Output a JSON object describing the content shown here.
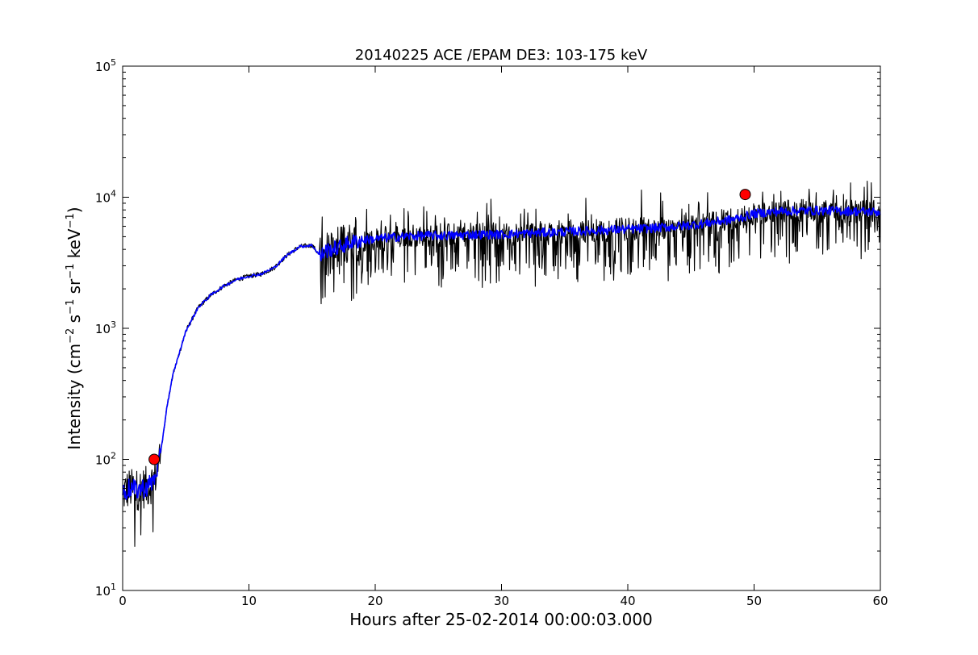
{
  "chart_data": {
    "type": "line",
    "title": "20140225 ACE /EPAM DE3: 103-175 keV",
    "xlabel": "Hours after 25-02-2014 00:00:03.000",
    "ylabel": {
      "parts": [
        "Intensity (cm",
        "−2",
        " s",
        "−1",
        " sr",
        "−1",
        " keV",
        "−1",
        ")"
      ],
      "superscript": [
        false,
        true,
        false,
        true,
        false,
        true,
        false,
        true,
        false
      ]
    },
    "xlim": [
      0,
      60
    ],
    "ylim": [
      10,
      100000
    ],
    "yscale": "log",
    "grid": false,
    "x_ticks": [
      0,
      10,
      20,
      30,
      40,
      50,
      60
    ],
    "x_tick_labels": [
      "0",
      "10",
      "20",
      "30",
      "40",
      "50",
      "60"
    ],
    "y_ticks": [
      10,
      100,
      1000,
      10000,
      100000
    ],
    "y_tick_labels": [
      {
        "base": "10",
        "exp": "1"
      },
      {
        "base": "10",
        "exp": "2"
      },
      {
        "base": "10",
        "exp": "3"
      },
      {
        "base": "10",
        "exp": "4"
      },
      {
        "base": "10",
        "exp": "5"
      }
    ],
    "series": [
      {
        "color": "#000000",
        "style": "raw-noisy",
        "x": [
          0,
          0.5,
          1,
          1.5,
          2,
          2.5,
          3,
          3.5,
          4,
          5,
          6,
          7,
          8,
          9,
          10,
          11,
          12,
          13,
          14,
          15,
          15.7,
          16,
          17,
          18,
          19,
          20,
          22,
          24,
          26,
          28,
          30,
          32,
          34,
          36,
          38,
          40,
          42,
          44,
          46,
          48,
          49,
          50,
          52,
          54,
          56,
          58,
          60
        ],
        "values": [
          55,
          60,
          58,
          60,
          62,
          70,
          110,
          250,
          450,
          950,
          1450,
          1800,
          2100,
          2350,
          2500,
          2600,
          2900,
          3600,
          4200,
          4300,
          3500,
          3900,
          4100,
          4500,
          4700,
          4800,
          5000,
          5100,
          5100,
          5200,
          5200,
          5300,
          5400,
          5500,
          5600,
          5700,
          5800,
          6000,
          6300,
          6700,
          7000,
          7500,
          7800,
          7900,
          7900,
          7800,
          7700
        ]
      },
      {
        "color": "#0000ff",
        "style": "smoothed",
        "x": [
          0,
          0.5,
          1,
          1.5,
          2,
          2.5,
          3,
          3.5,
          4,
          5,
          6,
          7,
          8,
          9,
          10,
          11,
          12,
          13,
          14,
          15,
          15.7,
          16,
          17,
          18,
          19,
          20,
          22,
          24,
          26,
          28,
          30,
          32,
          34,
          36,
          38,
          40,
          42,
          44,
          46,
          48,
          49,
          50,
          52,
          54,
          56,
          58,
          60
        ],
        "values": [
          55,
          60,
          58,
          60,
          62,
          70,
          110,
          250,
          450,
          950,
          1450,
          1800,
          2100,
          2350,
          2500,
          2600,
          2900,
          3600,
          4200,
          4300,
          3500,
          3900,
          4100,
          4500,
          4700,
          4800,
          5000,
          5100,
          5100,
          5200,
          5200,
          5300,
          5400,
          5500,
          5600,
          5700,
          5800,
          6000,
          6300,
          6700,
          7000,
          7500,
          7800,
          7900,
          7900,
          7800,
          7700
        ]
      }
    ],
    "markers": [
      {
        "x": 2.5,
        "y": 100,
        "color": "#ff0000"
      },
      {
        "x": 49.3,
        "y": 10500,
        "color": "#ff0000"
      }
    ]
  }
}
